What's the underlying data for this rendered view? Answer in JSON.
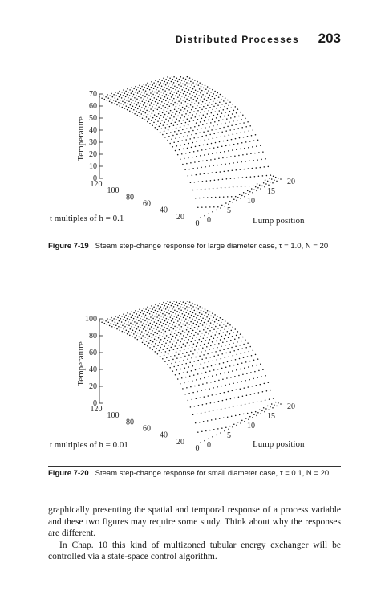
{
  "header": {
    "running_title": "Distributed Processes",
    "page_number": "203"
  },
  "figures": [
    {
      "caption_label": "Figure 7-19",
      "caption_text": "Steam step-change response for large diameter case, τ = 1.0, N = 20",
      "z_axis_title": "Temperature",
      "z_ticks": [
        "70",
        "60",
        "50",
        "40",
        "30",
        "20",
        "10",
        "0"
      ],
      "t_axis_title": "t multiples of h = 0.1",
      "t_ticks": [
        "120",
        "100",
        "80",
        "60",
        "40",
        "20",
        "0"
      ],
      "x_axis_title": "Lump position",
      "x_ticks": [
        "0",
        "5",
        "10",
        "15",
        "20"
      ]
    },
    {
      "caption_label": "Figure 7-20",
      "caption_text": "Steam step-change response for small diameter case, τ = 0.1, N = 20",
      "z_axis_title": "Temperature",
      "z_ticks": [
        "100",
        "80",
        "60",
        "40",
        "20",
        "0"
      ],
      "t_axis_title": "t multiples of h = 0.01",
      "t_ticks": [
        "120",
        "100",
        "80",
        "60",
        "40",
        "20",
        "0"
      ],
      "x_axis_title": "Lump position",
      "x_ticks": [
        "0",
        "5",
        "10",
        "15",
        "20"
      ]
    }
  ],
  "body": {
    "paragraph1": "graphically presenting the spatial and temporal response of a process variable and these two figures may require some study. Think about why the responses are different.",
    "paragraph2": "In Chap. 10 this kind of multizoned tubular energy exchanger will be controlled via a state-space control algorithm."
  },
  "chart_data": [
    {
      "type": "scatter",
      "x_axis": "Lump position",
      "y_axis": "t multiples of h = 0.1",
      "z_axis": "Temperature",
      "xlim": [
        0,
        20
      ],
      "ylim": [
        0,
        120
      ],
      "zlim": [
        0,
        70
      ],
      "grid": false
    },
    {
      "type": "scatter",
      "x_axis": "Lump position",
      "y_axis": "t multiples of h = 0.01",
      "z_axis": "Temperature",
      "xlim": [
        0,
        20
      ],
      "ylim": [
        0,
        120
      ],
      "zlim": [
        0,
        100
      ],
      "grid": false
    }
  ]
}
